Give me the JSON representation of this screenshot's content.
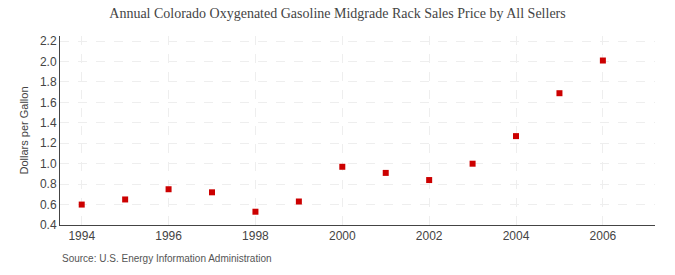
{
  "chart_data": {
    "type": "scatter",
    "title": "Annual Colorado Oxygenated Gasoline Midgrade Rack Sales Price by All Sellers",
    "ylabel": "Dollars per Gallon",
    "annotations": [
      "Source: U.S. Energy Information Administration"
    ],
    "x": [
      1994,
      1995,
      1996,
      1997,
      1998,
      1999,
      2000,
      2001,
      2002,
      2003,
      2004,
      2005,
      2006
    ],
    "values": [
      0.6,
      0.65,
      0.75,
      0.72,
      0.53,
      0.63,
      0.97,
      0.91,
      0.84,
      1.0,
      1.27,
      1.69,
      2.01
    ],
    "color": "#cc0000",
    "marker": "square",
    "xlim": [
      1993.5,
      2007.2
    ],
    "xticks": [
      1994,
      1996,
      1998,
      2000,
      2002,
      2004,
      2006
    ],
    "ylim": [
      0.4,
      2.25
    ],
    "yticks": [
      0.4,
      0.6,
      0.8,
      {
        "value": 1.0,
        "label": "1.0"
      },
      1.2,
      1.4,
      1.6,
      1.8,
      {
        "value": 2.0,
        "label": "2.0"
      },
      2.2
    ],
    "grid": true
  }
}
